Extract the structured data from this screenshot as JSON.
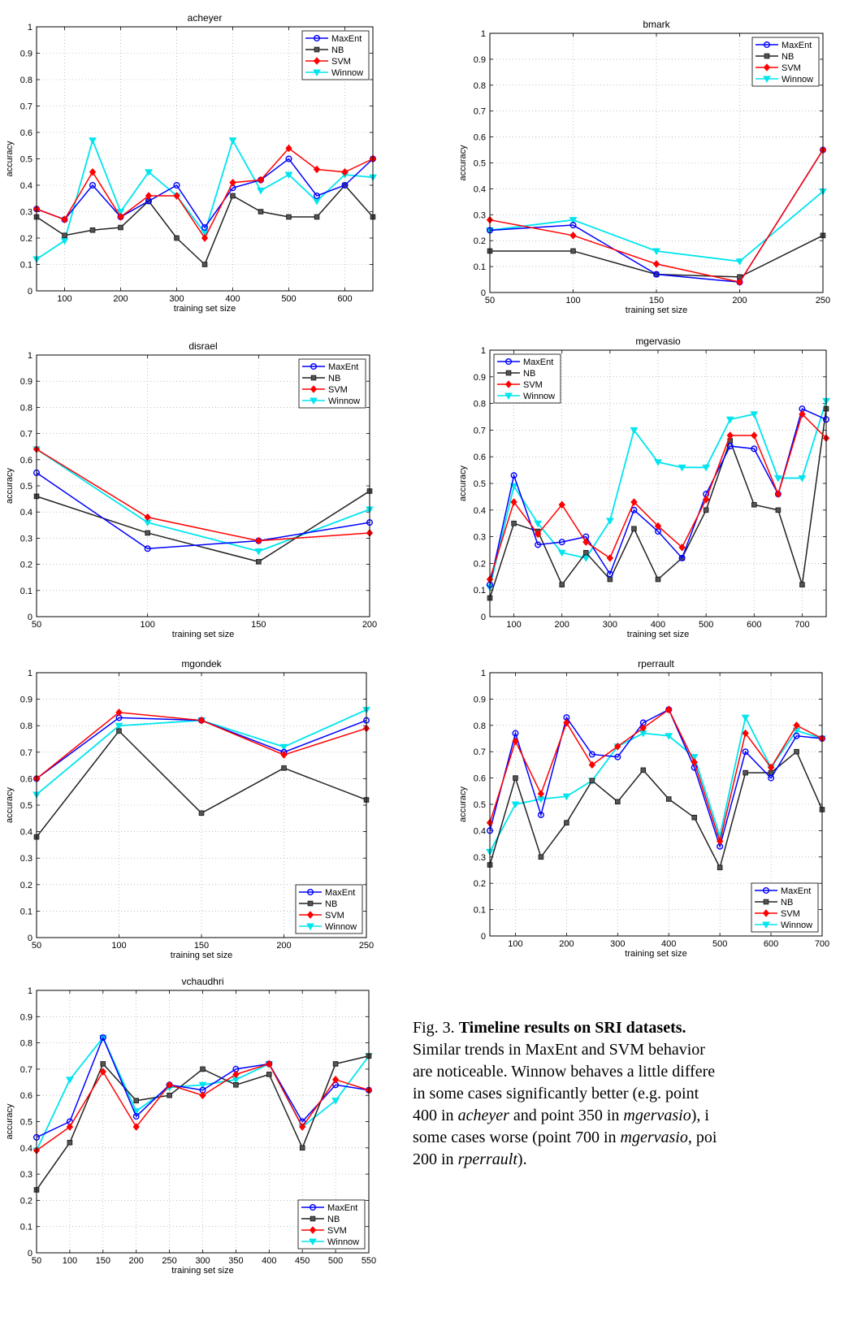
{
  "colors": {
    "MaxEnt": "#0000ff",
    "NB": "#222222",
    "SVM": "#ff0000",
    "Winnow": "#00e5ee"
  },
  "chart_data": [
    {
      "type": "line",
      "title": "acheyer",
      "xlabel": "training set size",
      "ylabel": "accuracy",
      "xlim": [
        50,
        650
      ],
      "ylim": [
        0,
        1
      ],
      "xticks": [
        100,
        200,
        300,
        400,
        500,
        600
      ],
      "yticks": [
        0,
        0.1,
        0.2,
        0.3,
        0.4,
        0.5,
        0.6,
        0.7,
        0.8,
        0.9,
        1
      ],
      "grid": true,
      "legend_position": "top-right",
      "x": [
        50,
        100,
        150,
        200,
        250,
        300,
        350,
        400,
        450,
        500,
        550,
        600,
        650
      ],
      "series": [
        {
          "name": "MaxEnt",
          "values": [
            0.31,
            0.27,
            0.4,
            0.28,
            0.34,
            0.4,
            0.24,
            0.39,
            0.42,
            0.5,
            0.36,
            0.4,
            0.5
          ]
        },
        {
          "name": "NB",
          "values": [
            0.28,
            0.21,
            0.23,
            0.24,
            0.34,
            0.2,
            0.1,
            0.36,
            0.3,
            0.28,
            0.28,
            0.4,
            0.28
          ]
        },
        {
          "name": "SVM",
          "values": [
            0.31,
            0.27,
            0.45,
            0.28,
            0.36,
            0.36,
            0.2,
            0.41,
            0.42,
            0.54,
            0.46,
            0.45,
            0.5
          ]
        },
        {
          "name": "Winnow",
          "values": [
            0.12,
            0.19,
            0.57,
            0.3,
            0.45,
            0.36,
            0.22,
            0.57,
            0.38,
            0.44,
            0.34,
            0.44,
            0.43
          ]
        }
      ]
    },
    {
      "type": "line",
      "title": "bmark",
      "xlabel": "training set size",
      "ylabel": "accuracy",
      "xlim": [
        50,
        250
      ],
      "ylim": [
        0,
        1
      ],
      "xticks": [
        50,
        100,
        150,
        200,
        250
      ],
      "yticks": [
        0,
        0.1,
        0.2,
        0.3,
        0.4,
        0.5,
        0.6,
        0.7,
        0.8,
        0.9,
        1
      ],
      "grid": true,
      "legend_position": "top-right",
      "x": [
        50,
        100,
        150,
        200,
        250
      ],
      "series": [
        {
          "name": "MaxEnt",
          "values": [
            0.24,
            0.26,
            0.07,
            0.04,
            0.55
          ]
        },
        {
          "name": "NB",
          "values": [
            0.16,
            0.16,
            0.07,
            0.06,
            0.22
          ]
        },
        {
          "name": "SVM",
          "values": [
            0.28,
            0.22,
            0.11,
            0.04,
            0.55
          ]
        },
        {
          "name": "Winnow",
          "values": [
            0.24,
            0.28,
            0.16,
            0.12,
            0.39
          ]
        }
      ]
    },
    {
      "type": "line",
      "title": "disrael",
      "xlabel": "training set size",
      "ylabel": "accuracy",
      "xlim": [
        50,
        200
      ],
      "ylim": [
        0,
        1
      ],
      "xticks": [
        50,
        100,
        150,
        200
      ],
      "yticks": [
        0,
        0.1,
        0.2,
        0.3,
        0.4,
        0.5,
        0.6,
        0.7,
        0.8,
        0.9,
        1
      ],
      "grid": true,
      "legend_position": "top-right",
      "x": [
        50,
        100,
        150,
        200
      ],
      "series": [
        {
          "name": "MaxEnt",
          "values": [
            0.55,
            0.26,
            0.29,
            0.36
          ]
        },
        {
          "name": "NB",
          "values": [
            0.46,
            0.32,
            0.21,
            0.48
          ]
        },
        {
          "name": "SVM",
          "values": [
            0.64,
            0.38,
            0.29,
            0.32
          ]
        },
        {
          "name": "Winnow",
          "values": [
            0.64,
            0.36,
            0.25,
            0.41
          ]
        }
      ]
    },
    {
      "type": "line",
      "title": "mgervasio",
      "xlabel": "training set size",
      "ylabel": "accuracy",
      "xlim": [
        50,
        750
      ],
      "ylim": [
        0,
        1
      ],
      "xticks": [
        100,
        200,
        300,
        400,
        500,
        600,
        700
      ],
      "yticks": [
        0,
        0.1,
        0.2,
        0.3,
        0.4,
        0.5,
        0.6,
        0.7,
        0.8,
        0.9,
        1
      ],
      "grid": true,
      "legend_position": "top-left",
      "x": [
        50,
        100,
        150,
        200,
        250,
        300,
        350,
        400,
        450,
        500,
        550,
        600,
        650,
        700,
        750
      ],
      "series": [
        {
          "name": "MaxEnt",
          "values": [
            0.12,
            0.53,
            0.27,
            0.28,
            0.3,
            0.16,
            0.4,
            0.32,
            0.22,
            0.46,
            0.64,
            0.63,
            0.46,
            0.78,
            0.74
          ]
        },
        {
          "name": "NB",
          "values": [
            0.07,
            0.35,
            0.32,
            0.12,
            0.24,
            0.14,
            0.33,
            0.14,
            0.22,
            0.4,
            0.66,
            0.42,
            0.4,
            0.12,
            0.78
          ]
        },
        {
          "name": "SVM",
          "values": [
            0.14,
            0.43,
            0.31,
            0.42,
            0.28,
            0.22,
            0.43,
            0.34,
            0.26,
            0.44,
            0.68,
            0.68,
            0.46,
            0.76,
            0.67
          ]
        },
        {
          "name": "Winnow",
          "values": [
            0.11,
            0.49,
            0.35,
            0.24,
            0.22,
            0.36,
            0.7,
            0.58,
            0.56,
            0.56,
            0.74,
            0.76,
            0.52,
            0.52,
            0.81
          ]
        }
      ]
    },
    {
      "type": "line",
      "title": "mgondek",
      "xlabel": "training set size",
      "ylabel": "accuracy",
      "xlim": [
        50,
        250
      ],
      "ylim": [
        0,
        1
      ],
      "xticks": [
        50,
        100,
        150,
        200,
        250
      ],
      "yticks": [
        0,
        0.1,
        0.2,
        0.3,
        0.4,
        0.5,
        0.6,
        0.7,
        0.8,
        0.9,
        1
      ],
      "grid": true,
      "legend_position": "bottom-right",
      "x": [
        50,
        100,
        150,
        200,
        250
      ],
      "series": [
        {
          "name": "MaxEnt",
          "values": [
            0.6,
            0.83,
            0.82,
            0.7,
            0.82
          ]
        },
        {
          "name": "NB",
          "values": [
            0.38,
            0.78,
            0.47,
            0.64,
            0.52
          ]
        },
        {
          "name": "SVM",
          "values": [
            0.6,
            0.85,
            0.82,
            0.69,
            0.79
          ]
        },
        {
          "name": "Winnow",
          "values": [
            0.54,
            0.8,
            0.82,
            0.72,
            0.86
          ]
        }
      ]
    },
    {
      "type": "line",
      "title": "rperrault",
      "xlabel": "training set size",
      "ylabel": "accuracy",
      "xlim": [
        50,
        700
      ],
      "ylim": [
        0,
        1
      ],
      "xticks": [
        100,
        200,
        300,
        400,
        500,
        600,
        700
      ],
      "yticks": [
        0,
        0.1,
        0.2,
        0.3,
        0.4,
        0.5,
        0.6,
        0.7,
        0.8,
        0.9,
        1
      ],
      "grid": true,
      "legend_position": "bottom-right",
      "x": [
        50,
        100,
        150,
        200,
        250,
        300,
        350,
        400,
        450,
        500,
        550,
        600,
        650,
        700
      ],
      "series": [
        {
          "name": "MaxEnt",
          "values": [
            0.4,
            0.77,
            0.46,
            0.83,
            0.69,
            0.68,
            0.81,
            0.86,
            0.64,
            0.34,
            0.7,
            0.6,
            0.76,
            0.75
          ]
        },
        {
          "name": "NB",
          "values": [
            0.27,
            0.6,
            0.3,
            0.43,
            0.59,
            0.51,
            0.63,
            0.52,
            0.45,
            0.26,
            0.62,
            0.62,
            0.7,
            0.48
          ]
        },
        {
          "name": "SVM",
          "values": [
            0.43,
            0.74,
            0.54,
            0.81,
            0.65,
            0.72,
            0.79,
            0.86,
            0.66,
            0.36,
            0.77,
            0.64,
            0.8,
            0.75
          ]
        },
        {
          "name": "Winnow",
          "values": [
            0.32,
            0.5,
            0.52,
            0.53,
            0.59,
            0.72,
            0.77,
            0.76,
            0.68,
            0.38,
            0.83,
            0.64,
            0.78,
            0.75
          ]
        }
      ]
    },
    {
      "type": "line",
      "title": "vchaudhri",
      "xlabel": "training set size",
      "ylabel": "accuracy",
      "xlim": [
        50,
        550
      ],
      "ylim": [
        0,
        1
      ],
      "xticks": [
        50,
        100,
        150,
        200,
        250,
        300,
        350,
        400,
        450,
        500,
        550
      ],
      "yticks": [
        0,
        0.1,
        0.2,
        0.3,
        0.4,
        0.5,
        0.6,
        0.7,
        0.8,
        0.9,
        1
      ],
      "grid": true,
      "legend_position": "bottom-right",
      "x": [
        50,
        100,
        150,
        200,
        250,
        300,
        350,
        400,
        450,
        500,
        550
      ],
      "series": [
        {
          "name": "MaxEnt",
          "values": [
            0.44,
            0.5,
            0.82,
            0.52,
            0.64,
            0.62,
            0.7,
            0.72,
            0.5,
            0.64,
            0.62
          ]
        },
        {
          "name": "NB",
          "values": [
            0.24,
            0.42,
            0.72,
            0.58,
            0.6,
            0.7,
            0.64,
            0.68,
            0.4,
            0.72,
            0.75
          ]
        },
        {
          "name": "SVM",
          "values": [
            0.39,
            0.48,
            0.69,
            0.48,
            0.64,
            0.6,
            0.68,
            0.72,
            0.48,
            0.66,
            0.62
          ]
        },
        {
          "name": "Winnow",
          "values": [
            0.39,
            0.66,
            0.82,
            0.54,
            0.63,
            0.64,
            0.66,
            0.72,
            0.48,
            0.58,
            0.75
          ]
        }
      ]
    }
  ],
  "caption": {
    "lines": [
      [
        {
          "t": "Fig. 3. "
        },
        {
          "t": "Timeline results on SRI datasets.",
          "b": true
        }
      ],
      [
        {
          "t": "Similar trends in MaxEnt and SVM behavior"
        }
      ],
      [
        {
          "t": "are noticeable. Winnow behaves a little differe"
        }
      ],
      [
        {
          "t": "in some cases significantly better (e.g. point"
        }
      ],
      [
        {
          "t": "400 in "
        },
        {
          "t": "acheyer",
          "i": true
        },
        {
          "t": " and point 350 in "
        },
        {
          "t": "mgervasio",
          "i": true
        },
        {
          "t": "), i"
        }
      ],
      [
        {
          "t": "some cases worse (point 700 in "
        },
        {
          "t": "mgervasio",
          "i": true
        },
        {
          "t": ", poi"
        }
      ],
      [
        {
          "t": "200 in "
        },
        {
          "t": "rperrault",
          "i": true
        },
        {
          "t": ")."
        }
      ]
    ]
  }
}
